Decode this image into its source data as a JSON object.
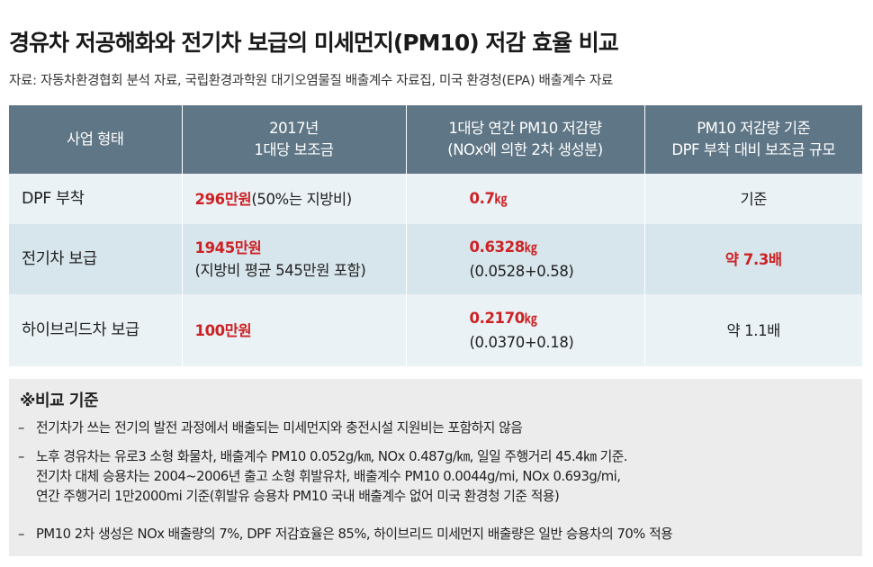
{
  "title": "경유차 저공해화와 전기차 보급의 미세먼지(PM10) 저감 효율 비교",
  "source": "자료: 자동차환경협회 분석 자료, 국립환경과학원 대기오염물질 배출계수 자료집, 미국 환경청(EPA) 배출계수 자료",
  "table": {
    "headers": [
      [
        "사업 형태"
      ],
      [
        "2017년",
        "1대당 보조금"
      ],
      [
        "1대당 연간 PM10 저감량",
        "(NOx에 의한 2차 생성분)"
      ],
      [
        "PM10 저감량 기준",
        "DPF 부착 대비 보조금 규모"
      ]
    ],
    "rows": [
      {
        "type": "DPF 부착",
        "subsidy": "296만원",
        "subsidy_note": "(50%는 지방비)",
        "reduction": "0.7",
        "reduction_unit": "㎏",
        "reduction_detail": "",
        "ratio": "기준",
        "ratio_highlight": false
      },
      {
        "type": "전기차 보급",
        "subsidy": "1945만원",
        "subsidy_note": "(지방비 평균 545만원 포함)",
        "reduction": "0.6328",
        "reduction_unit": "㎏",
        "reduction_detail": "(0.0528+0.58)",
        "ratio": "약 7.3배",
        "ratio_highlight": true
      },
      {
        "type": "하이브리드차 보급",
        "subsidy": "100만원",
        "subsidy_note": "",
        "reduction": "0.2170",
        "reduction_unit": "㎏",
        "reduction_detail": "(0.0370+0.18)",
        "ratio": "약 1.1배",
        "ratio_highlight": false
      }
    ]
  },
  "notes": {
    "title": "※비교 기준",
    "items": [
      [
        "전기차가 쓰는 전기의 발전 과정에서 배출되는 미세먼지와 충전시설 지원비는 포함하지 않음"
      ],
      [
        "노후 경유차는 유로3 소형 화물차, 배출계수 PM10 0.052g/㎞, NOx 0.487g/㎞, 일일 주행거리 45.4㎞ 기준.",
        "전기차 대체 승용차는 2004~2006년 출고 소형 휘발유차, 배출계수 PM10 0.0044g/mi, NOx 0.693g/mi,",
        "연간 주행거리 1만2000mi 기준(휘발유 승용차 PM10 국내 배출계수 없어 미국 환경청 기준 적용)"
      ],
      [
        "PM10 2차 생성은 NOx 배출량의 7%, DPF 저감효율은 85%, 하이브리드 미세먼지 배출량은 일반 승용차의 70% 적용"
      ]
    ]
  }
}
